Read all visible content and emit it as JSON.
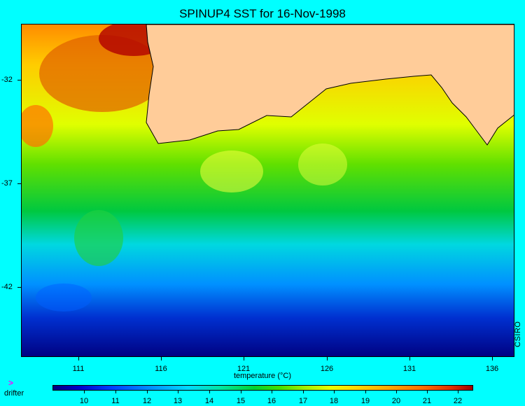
{
  "title": "SPINUP4 SST for 16-Nov-1998",
  "map": {
    "land_color": "#ffcc99",
    "lat_ticks": [
      "-32",
      "-37",
      "-42"
    ],
    "lon_ticks": [
      "111",
      "116",
      "121",
      "126",
      "131",
      "136"
    ],
    "credit": "CSIRO"
  },
  "colorbar": {
    "label": "temperature (°C)",
    "ticks": [
      "10",
      "11",
      "12",
      "13",
      "14",
      "15",
      "16",
      "17",
      "18",
      "19",
      "20",
      "21",
      "22"
    ],
    "colors": [
      "#000080",
      "#0040ff",
      "#00d8ff",
      "#00d232",
      "#e8ff00",
      "#ffa800",
      "#a00000"
    ]
  },
  "legend": {
    "drifter_icon": "chevron-right-icon",
    "drifter_label": "drifter",
    "drifter_color": "#ff00ff"
  }
}
